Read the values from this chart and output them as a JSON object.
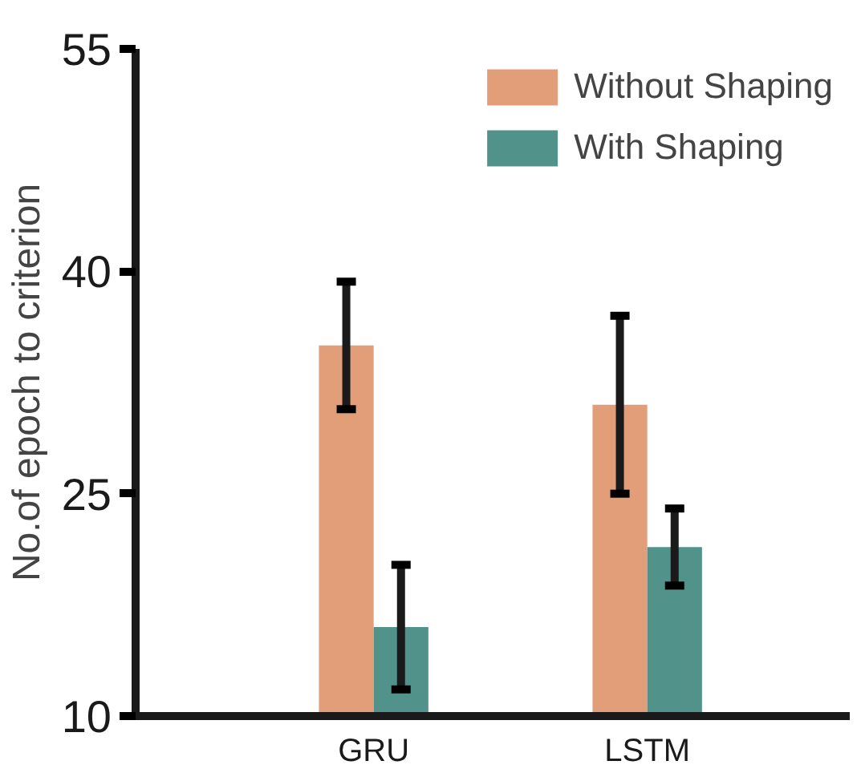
{
  "chart_data": {
    "type": "bar",
    "ylabel": "No.of epoch to criterion",
    "categories": [
      "GRU",
      "LSTM"
    ],
    "series": [
      {
        "name": "Without Shaping",
        "color": "#e19e78",
        "values": [
          35,
          31
        ],
        "errors": [
          4.3,
          6
        ]
      },
      {
        "name": "With Shaping",
        "color": "#51938a",
        "values": [
          16,
          21.4
        ],
        "errors": [
          4.2,
          2.6
        ]
      }
    ],
    "ylim": [
      10,
      55
    ],
    "yticks": [
      10,
      25,
      40,
      55
    ],
    "legend": "top right"
  }
}
